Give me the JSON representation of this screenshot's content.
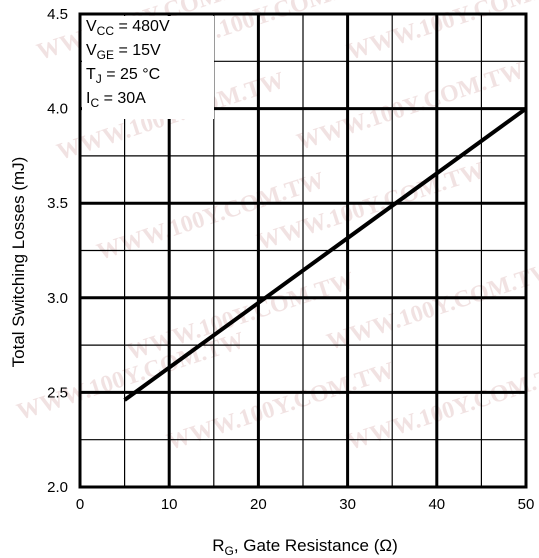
{
  "chart_data": {
    "type": "line",
    "xlabel_main": "R",
    "xlabel_sub": "G",
    "xlabel_rest": ",  Gate Resistance  (",
    "xlabel_unit": "Ω",
    "xlabel_close": ")",
    "ylabel": "Total Switching Losses (mJ)",
    "xlim": [
      0,
      50
    ],
    "ylim": [
      2.0,
      4.5
    ],
    "x_ticks": [
      "0",
      "10",
      "20",
      "30",
      "40",
      "50"
    ],
    "y_ticks": [
      "2.0",
      "2.5",
      "3.0",
      "3.5",
      "4.0",
      "4.5"
    ],
    "grid": true,
    "series": [
      {
        "x": [
          5,
          50
        ],
        "y": [
          2.46,
          4.0
        ]
      }
    ],
    "conditions": [
      {
        "sym": "V",
        "sub": "CC",
        "text": " = 480V"
      },
      {
        "sym": "V",
        "sub": "GE",
        "text": " = 15V"
      },
      {
        "sym": "T",
        "sub": "J",
        "text": "   = 25  °C"
      },
      {
        "sym": "I",
        "sub": "C",
        "text": "    = 30A"
      }
    ],
    "watermark": "WWW.100Y.COM.TW"
  }
}
